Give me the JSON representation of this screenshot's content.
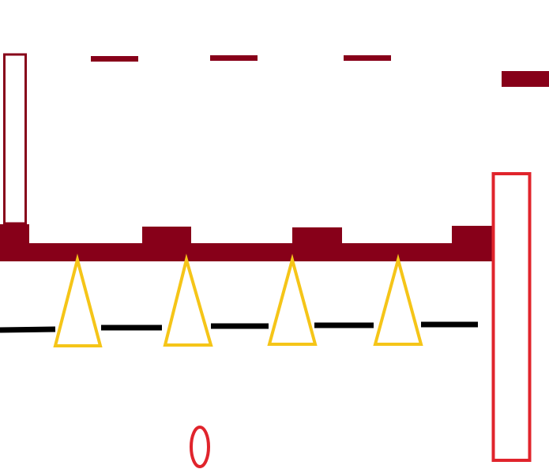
{
  "colors": {
    "background": "#ffffff",
    "maroon": "#870019",
    "red": "#e0242c",
    "yellow": "#f5c518",
    "black": "#000000"
  },
  "shapes": {
    "short_dashes": 3,
    "top_blocks_on_bar": 4,
    "cones": 4,
    "black_line_segments": 5
  }
}
